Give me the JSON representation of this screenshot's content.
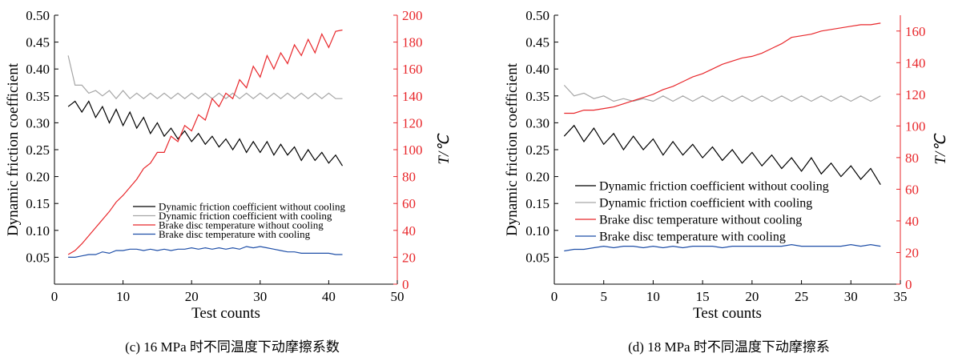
{
  "chart_data": [
    {
      "type": "line",
      "caption": "(c) 16 MPa 时不同温度下动摩擦系数",
      "xlabel": "Test counts",
      "ylabel": "Dynamic friction coefficient",
      "ylabel_right": "T/℃",
      "xlim": [
        0,
        50
      ],
      "ylim": [
        0,
        0.5
      ],
      "ylim_right": [
        0,
        200
      ],
      "xticks": [
        "0",
        "10",
        "20",
        "30",
        "40",
        "50"
      ],
      "yticks": [
        "0.05",
        "0.10",
        "0.15",
        "0.20",
        "0.25",
        "0.30",
        "0.35",
        "0.40",
        "0.45",
        "0.50"
      ],
      "yticks_right": [
        "0",
        "20",
        "40",
        "60",
        "80",
        "100",
        "120",
        "140",
        "160",
        "180",
        "200"
      ],
      "grid": false,
      "legend_position": "lower-center",
      "series": [
        {
          "name": "Dynamic friction coefficient without cooling",
          "axis": "left",
          "color": "#000000",
          "x": [
            2,
            3,
            4,
            5,
            6,
            7,
            8,
            9,
            10,
            11,
            12,
            13,
            14,
            15,
            16,
            17,
            18,
            19,
            20,
            21,
            22,
            23,
            24,
            25,
            26,
            27,
            28,
            29,
            30,
            31,
            32,
            33,
            34,
            35,
            36,
            37,
            38,
            39,
            40,
            41,
            42
          ],
          "y": [
            0.33,
            0.34,
            0.32,
            0.34,
            0.31,
            0.33,
            0.3,
            0.325,
            0.295,
            0.32,
            0.29,
            0.31,
            0.28,
            0.3,
            0.275,
            0.29,
            0.27,
            0.285,
            0.265,
            0.28,
            0.26,
            0.275,
            0.255,
            0.27,
            0.25,
            0.27,
            0.245,
            0.265,
            0.245,
            0.265,
            0.24,
            0.26,
            0.24,
            0.255,
            0.23,
            0.25,
            0.23,
            0.245,
            0.225,
            0.24,
            0.22
          ]
        },
        {
          "name": "Dynamic friction coefficient with cooling",
          "axis": "left",
          "color": "#a6a6a6",
          "x": [
            2,
            3,
            4,
            5,
            6,
            7,
            8,
            9,
            10,
            11,
            12,
            13,
            14,
            15,
            16,
            17,
            18,
            19,
            20,
            21,
            22,
            23,
            24,
            25,
            26,
            27,
            28,
            29,
            30,
            31,
            32,
            33,
            34,
            35,
            36,
            37,
            38,
            39,
            40,
            41,
            42
          ],
          "y": [
            0.425,
            0.37,
            0.37,
            0.355,
            0.36,
            0.35,
            0.36,
            0.345,
            0.36,
            0.345,
            0.355,
            0.345,
            0.355,
            0.345,
            0.355,
            0.345,
            0.355,
            0.345,
            0.355,
            0.345,
            0.355,
            0.345,
            0.355,
            0.345,
            0.355,
            0.345,
            0.355,
            0.345,
            0.355,
            0.345,
            0.355,
            0.345,
            0.355,
            0.345,
            0.355,
            0.345,
            0.355,
            0.345,
            0.355,
            0.345,
            0.345
          ]
        },
        {
          "name": "Brake disc temperature without cooling",
          "axis": "right",
          "color": "#e8272b",
          "x": [
            2,
            3,
            4,
            5,
            6,
            7,
            8,
            9,
            10,
            11,
            12,
            13,
            14,
            15,
            16,
            17,
            18,
            19,
            20,
            21,
            22,
            23,
            24,
            25,
            26,
            27,
            28,
            29,
            30,
            31,
            32,
            33,
            34,
            35,
            36,
            37,
            38,
            39,
            40,
            41,
            42
          ],
          "y": [
            22,
            25,
            30,
            36,
            42,
            48,
            54,
            61,
            66,
            72,
            78,
            86,
            90,
            98,
            98,
            110,
            106,
            118,
            114,
            126,
            122,
            138,
            132,
            142,
            138,
            152,
            146,
            162,
            154,
            170,
            160,
            172,
            164,
            178,
            170,
            182,
            172,
            186,
            176,
            188,
            189
          ]
        },
        {
          "name": "Brake disc temperature with cooling",
          "axis": "right",
          "color": "#1f4fa8",
          "x": [
            2,
            3,
            4,
            5,
            6,
            7,
            8,
            9,
            10,
            11,
            12,
            13,
            14,
            15,
            16,
            17,
            18,
            19,
            20,
            21,
            22,
            23,
            24,
            25,
            26,
            27,
            28,
            29,
            30,
            31,
            32,
            33,
            34,
            35,
            36,
            37,
            38,
            39,
            40,
            41,
            42
          ],
          "y": [
            20,
            20,
            21,
            22,
            22,
            24,
            23,
            25,
            25,
            26,
            26,
            25,
            26,
            25,
            26,
            25,
            26,
            26,
            27,
            26,
            27,
            26,
            27,
            26,
            27,
            26,
            28,
            27,
            28,
            27,
            26,
            25,
            24,
            24,
            23,
            23,
            23,
            23,
            23,
            22,
            22
          ]
        }
      ]
    },
    {
      "type": "line",
      "caption": "(d) 18 MPa 时不同温度下动摩擦系",
      "xlabel": "Test counts",
      "ylabel": "Dynamic friction coefficient",
      "ylabel_right": "T/℃",
      "xlim": [
        0,
        35
      ],
      "ylim": [
        0,
        0.5
      ],
      "ylim_right": [
        0,
        170
      ],
      "xticks": [
        "0",
        "5",
        "10",
        "15",
        "20",
        "25",
        "30",
        "35"
      ],
      "yticks": [
        "0.05",
        "0.10",
        "0.15",
        "0.20",
        "0.25",
        "0.30",
        "0.35",
        "0.40",
        "0.45",
        "0.50"
      ],
      "yticks_right": [
        "0",
        "20",
        "40",
        "60",
        "80",
        "100",
        "120",
        "140",
        "160"
      ],
      "grid": false,
      "legend_position": "lower-center",
      "series": [
        {
          "name": "Dynamic friction coefficient without cooling",
          "axis": "left",
          "color": "#000000",
          "x": [
            1,
            2,
            3,
            4,
            5,
            6,
            7,
            8,
            9,
            10,
            11,
            12,
            13,
            14,
            15,
            16,
            17,
            18,
            19,
            20,
            21,
            22,
            23,
            24,
            25,
            26,
            27,
            28,
            29,
            30,
            31,
            32,
            33
          ],
          "y": [
            0.275,
            0.295,
            0.265,
            0.29,
            0.26,
            0.28,
            0.25,
            0.275,
            0.25,
            0.27,
            0.24,
            0.265,
            0.24,
            0.26,
            0.235,
            0.255,
            0.23,
            0.25,
            0.225,
            0.245,
            0.22,
            0.24,
            0.215,
            0.235,
            0.21,
            0.235,
            0.205,
            0.225,
            0.2,
            0.22,
            0.195,
            0.215,
            0.185
          ]
        },
        {
          "name": "Dynamic friction coefficient with cooling",
          "axis": "left",
          "color": "#a6a6a6",
          "x": [
            1,
            2,
            3,
            4,
            5,
            6,
            7,
            8,
            9,
            10,
            11,
            12,
            13,
            14,
            15,
            16,
            17,
            18,
            19,
            20,
            21,
            22,
            23,
            24,
            25,
            26,
            27,
            28,
            29,
            30,
            31,
            32,
            33
          ],
          "y": [
            0.37,
            0.35,
            0.355,
            0.345,
            0.35,
            0.34,
            0.345,
            0.34,
            0.345,
            0.34,
            0.35,
            0.34,
            0.35,
            0.34,
            0.35,
            0.34,
            0.35,
            0.34,
            0.35,
            0.34,
            0.35,
            0.34,
            0.35,
            0.34,
            0.35,
            0.34,
            0.35,
            0.34,
            0.35,
            0.34,
            0.35,
            0.34,
            0.35
          ]
        },
        {
          "name": "Brake disc temperature without cooling",
          "axis": "right",
          "color": "#e8272b",
          "x": [
            1,
            2,
            3,
            4,
            5,
            6,
            7,
            8,
            9,
            10,
            11,
            12,
            13,
            14,
            15,
            16,
            17,
            18,
            19,
            20,
            21,
            22,
            23,
            24,
            25,
            26,
            27,
            28,
            29,
            30,
            31,
            32,
            33
          ],
          "y": [
            108,
            108,
            110,
            110,
            111,
            112,
            114,
            116,
            118,
            120,
            123,
            125,
            128,
            131,
            133,
            136,
            139,
            141,
            143,
            144,
            146,
            149,
            152,
            156,
            157,
            158,
            160,
            161,
            162,
            163,
            164,
            164,
            165
          ]
        },
        {
          "name": "Brake disc temperature with cooling",
          "axis": "right",
          "color": "#1f4fa8",
          "x": [
            1,
            2,
            3,
            4,
            5,
            6,
            7,
            8,
            9,
            10,
            11,
            12,
            13,
            14,
            15,
            16,
            17,
            18,
            19,
            20,
            21,
            22,
            23,
            24,
            25,
            26,
            27,
            28,
            29,
            30,
            31,
            32,
            33
          ],
          "y": [
            21,
            22,
            22,
            23,
            24,
            23,
            24,
            24,
            23,
            24,
            23,
            24,
            23,
            24,
            24,
            24,
            23,
            24,
            24,
            24,
            24,
            24,
            24,
            25,
            24,
            24,
            24,
            24,
            24,
            25,
            24,
            25,
            24
          ]
        }
      ]
    }
  ]
}
